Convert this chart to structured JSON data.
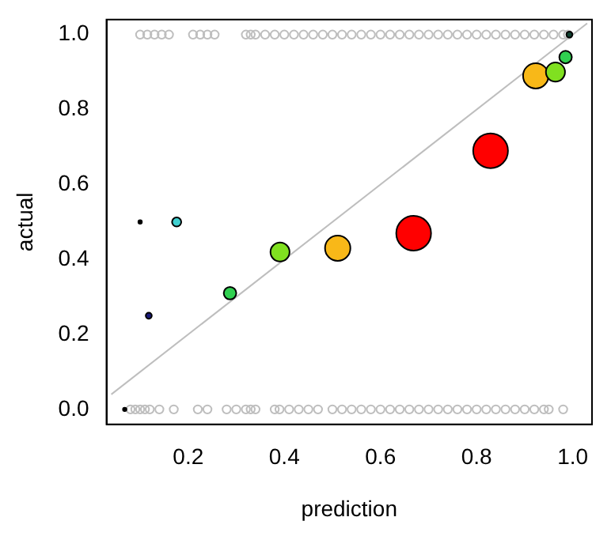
{
  "chart_data": {
    "type": "scatter",
    "xlabel": "prediction",
    "ylabel": "actual",
    "xlim": [
      0.03,
      1.04
    ],
    "ylim": [
      -0.04,
      1.04
    ],
    "xticks": [
      0.2,
      0.4,
      0.6,
      0.8,
      {
        "value": 1,
        "label": "1.0"
      }
    ],
    "yticks": [
      {
        "value": 0,
        "label": "0.0"
      },
      0.2,
      0.4,
      0.6,
      0.8,
      {
        "value": 1,
        "label": "1.0"
      }
    ],
    "grid": false,
    "legend": false,
    "series": [
      {
        "marker": "circle",
        "color": "#bebebe",
        "x": [
          0.1,
          0.115,
          0.13,
          0.145,
          0.16,
          0.21,
          0.225,
          0.24,
          0.255,
          0.32,
          0.33,
          0.34,
          0.36,
          0.38,
          0.4,
          0.42,
          0.44,
          0.46,
          0.48,
          0.5,
          0.52,
          0.54,
          0.56,
          0.58,
          0.6,
          0.62,
          0.64,
          0.66,
          0.68,
          0.7,
          0.72,
          0.74,
          0.76,
          0.78,
          0.8,
          0.82,
          0.84,
          0.86,
          0.88,
          0.9,
          0.92,
          0.94,
          0.96,
          0.98,
          0.99
        ],
        "values": [
          1,
          1,
          1,
          1,
          1,
          1,
          1,
          1,
          1,
          1,
          1,
          1,
          1,
          1,
          1,
          1,
          1,
          1,
          1,
          1,
          1,
          1,
          1,
          1,
          1,
          1,
          1,
          1,
          1,
          1,
          1,
          1,
          1,
          1,
          1,
          1,
          1,
          1,
          1,
          1,
          1,
          1,
          1,
          1,
          1
        ]
      },
      {
        "marker": "circle",
        "color": "#bebebe",
        "x": [
          0.08,
          0.09,
          0.1,
          0.11,
          0.12,
          0.14,
          0.17,
          0.22,
          0.24,
          0.28,
          0.3,
          0.32,
          0.33,
          0.34,
          0.38,
          0.39,
          0.41,
          0.43,
          0.45,
          0.47,
          0.5,
          0.52,
          0.54,
          0.56,
          0.58,
          0.6,
          0.62,
          0.64,
          0.66,
          0.68,
          0.7,
          0.72,
          0.74,
          0.76,
          0.78,
          0.8,
          0.82,
          0.84,
          0.86,
          0.88,
          0.9,
          0.92,
          0.94,
          0.95,
          0.98
        ],
        "values": [
          0,
          0,
          0,
          0,
          0,
          0,
          0,
          0,
          0,
          0,
          0,
          0,
          0,
          0,
          0,
          0,
          0,
          0,
          0,
          0,
          0,
          0,
          0,
          0,
          0,
          0,
          0,
          0,
          0,
          0,
          0,
          0,
          0,
          0,
          0,
          0,
          0,
          0,
          0,
          0,
          0,
          0,
          0,
          0,
          0
        ]
      },
      {
        "type": "line",
        "marker": "none",
        "color": "#bebebe",
        "x": [
          0.04,
          1.03
        ],
        "values": [
          0.04,
          1.03
        ]
      },
      {
        "type": "bubble",
        "x": [
          0.068,
          0.1,
          0.118,
          0.176,
          0.287,
          0.391,
          0.511,
          0.669,
          0.829,
          0.923,
          0.964,
          0.985,
          0.993
        ],
        "values": [
          0,
          0.5,
          0.25,
          0.5,
          0.31,
          0.42,
          0.43,
          0.47,
          0.69,
          0.89,
          0.9,
          0.94,
          1
        ],
        "sizes": [
          0.01,
          0.01,
          0.03,
          0.07,
          0.13,
          0.3,
          0.53,
          1,
          1,
          0.53,
          0.3,
          0.13,
          0.03
        ],
        "colors": [
          "#000000",
          "#000000",
          "#1a1a7a",
          "#40d0d0",
          "#30d050",
          "#80e020",
          "#f8b818",
          "#ff0000",
          "#ff0000",
          "#f8b818",
          "#80e020",
          "#30d050",
          "#104030"
        ]
      }
    ]
  }
}
